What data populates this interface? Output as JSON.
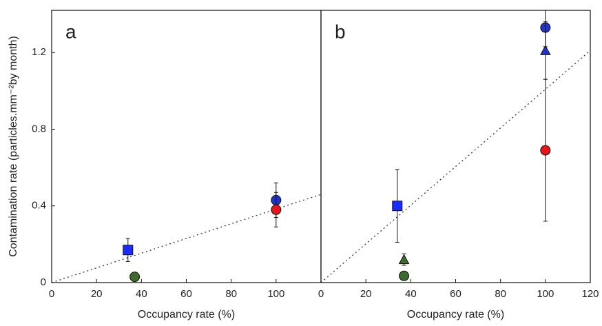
{
  "chart_data": [
    {
      "type": "scatter",
      "panel_label": "a",
      "x_label": "Occupancy rate (%)",
      "y_label": "Contamination rate (particles.mm⁻²by month)",
      "xlim": [
        0,
        120
      ],
      "ylim": [
        0,
        1.42
      ],
      "xticks": [
        0,
        20,
        40,
        60,
        80,
        100
      ],
      "yticks": [
        0,
        0.4,
        0.8,
        {
          "value": 1.2,
          "label": "1.2"
        }
      ],
      "fit_line": {
        "x": [
          0,
          120
        ],
        "y": [
          0,
          0.46
        ]
      },
      "series": [
        {
          "marker": "square",
          "color": "#1a2cff",
          "x": [
            34
          ],
          "y": [
            0.17
          ],
          "errors": [
            0.06
          ]
        },
        {
          "marker": "circle",
          "color": "#3c6b2c",
          "x": [
            37
          ],
          "y": [
            0.03
          ],
          "errors": [
            0.01
          ]
        },
        {
          "marker": "circle",
          "color": "#2233cc",
          "x": [
            100
          ],
          "y": [
            0.43
          ],
          "errors": [
            0.09
          ]
        },
        {
          "marker": "circle",
          "color": "#e8141c",
          "x": [
            100
          ],
          "y": [
            0.38
          ],
          "errors": [
            0.09
          ]
        }
      ]
    },
    {
      "type": "scatter",
      "panel_label": "b",
      "x_label": "Occupancy rate (%)",
      "xlim": [
        0,
        120
      ],
      "ylim": [
        0,
        1.42
      ],
      "xticks": [
        0,
        20,
        40,
        60,
        80,
        100,
        120
      ],
      "fit_line": {
        "x": [
          0,
          120
        ],
        "y": [
          0,
          1.21
        ]
      },
      "series": [
        {
          "marker": "square",
          "color": "#1a2cff",
          "x": [
            34
          ],
          "y": [
            0.4
          ],
          "errors": [
            0.19
          ]
        },
        {
          "marker": "triangle",
          "color": "#3c6b2c",
          "x": [
            37
          ],
          "y": [
            0.12
          ],
          "errors": [
            0.03
          ]
        },
        {
          "marker": "circle",
          "color": "#3c6b2c",
          "x": [
            37
          ],
          "y": [
            0.035
          ],
          "errors": [
            0.01
          ]
        },
        {
          "marker": "circle",
          "color": "#2233cc",
          "x": [
            100
          ],
          "y": [
            1.33
          ],
          "errors": [
            0.1
          ]
        },
        {
          "marker": "triangle",
          "color": "#2233cc",
          "x": [
            100
          ],
          "y": [
            1.21
          ],
          "errors": [
            0.15
          ]
        },
        {
          "marker": "circle",
          "color": "#e8141c",
          "x": [
            100
          ],
          "y": [
            0.69
          ],
          "errors": [
            0.37
          ]
        }
      ]
    }
  ]
}
